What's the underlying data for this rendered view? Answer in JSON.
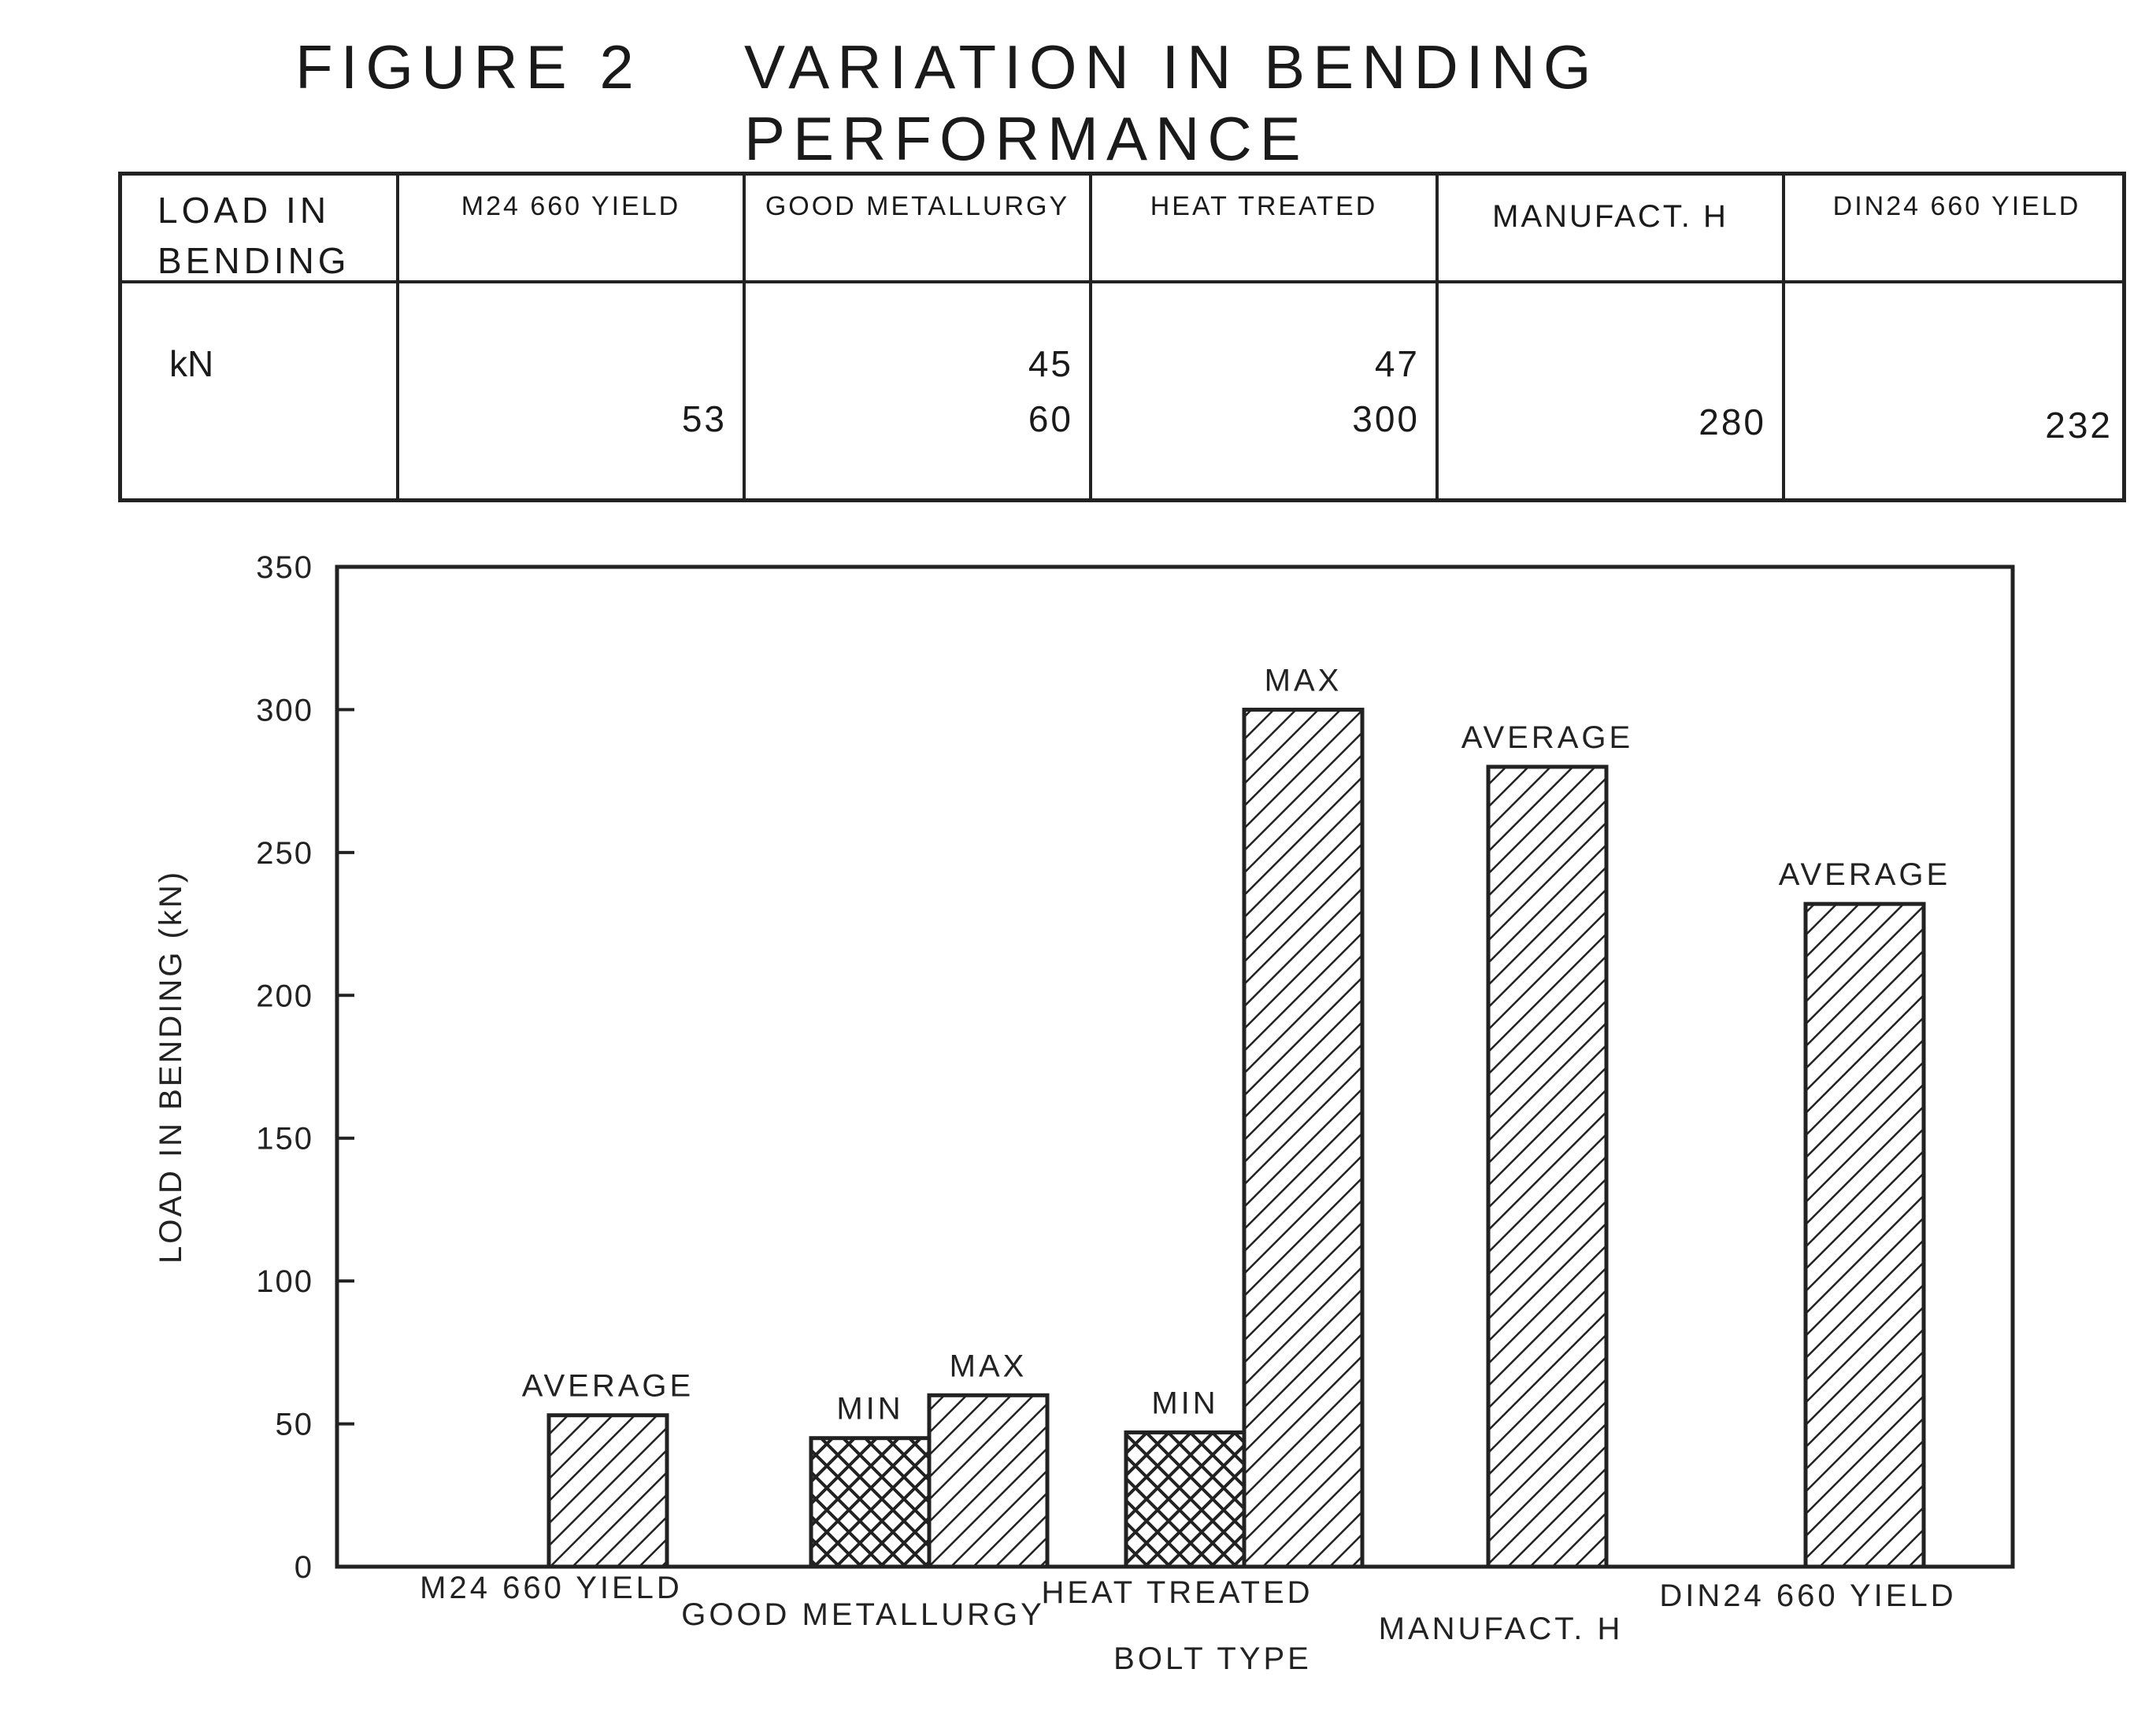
{
  "title": {
    "figure": "FIGURE 2",
    "heading": "VARIATION IN BENDING PERFORMANCE"
  },
  "table": {
    "header_first_line1": "LOAD IN",
    "header_first_line2": "BENDING",
    "unit": "kN",
    "columns": [
      {
        "label": "M24 660 YIELD",
        "values": [
          "53"
        ]
      },
      {
        "label": "GOOD METALLURGY",
        "values": [
          "45",
          "60"
        ]
      },
      {
        "label": "HEAT TREATED",
        "values": [
          "47",
          "300"
        ]
      },
      {
        "label": "MANUFACT. H",
        "values": [
          "280"
        ]
      },
      {
        "label": "DIN24 660 YIELD",
        "values": [
          "232"
        ]
      }
    ]
  },
  "chart_data": {
    "type": "bar",
    "xlabel": "BOLT TYPE",
    "ylabel": "LOAD IN BENDING (kN)",
    "ylim": [
      0,
      350
    ],
    "yticks": [
      0,
      50,
      100,
      150,
      200,
      250,
      300,
      350
    ],
    "categories": [
      "M24 660 YIELD",
      "GOOD METALLURGY",
      "HEAT TREATED",
      "MANUFACT. H",
      "DIN24 660 YIELD"
    ],
    "bars": [
      {
        "category": "M24 660 YIELD",
        "label": "AVERAGE",
        "value": 53,
        "pattern": "diagonal"
      },
      {
        "category": "GOOD METALLURGY",
        "label": "MIN",
        "value": 45,
        "pattern": "crosshatch"
      },
      {
        "category": "GOOD METALLURGY",
        "label": "MAX",
        "value": 60,
        "pattern": "diagonal"
      },
      {
        "category": "HEAT TREATED",
        "label": "MIN",
        "value": 47,
        "pattern": "crosshatch"
      },
      {
        "category": "HEAT TREATED",
        "label": "MAX",
        "value": 300,
        "pattern": "diagonal"
      },
      {
        "category": "MANUFACT. H",
        "label": "AVERAGE",
        "value": 280,
        "pattern": "diagonal"
      },
      {
        "category": "DIN24 660 YIELD",
        "label": "AVERAGE",
        "value": 232,
        "pattern": "diagonal"
      }
    ],
    "grid": false,
    "legend": "none"
  }
}
